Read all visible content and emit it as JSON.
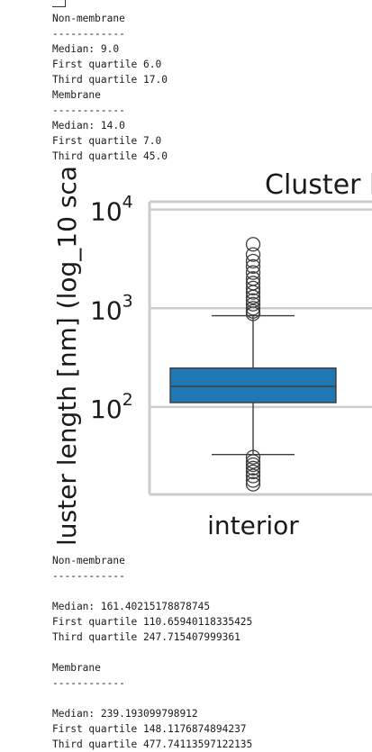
{
  "top_output": {
    "nonmembrane": {
      "title": "Non-membrane",
      "rule": "------------",
      "median": "Median: 9.0",
      "q1": "First quartile 6.0",
      "q3": "Third quartile 17.0"
    },
    "membrane": {
      "title": "Membrane",
      "rule": "------------",
      "median": "Median: 14.0",
      "q1": "First quartile 7.0",
      "q3": "Third quartile 45.0"
    }
  },
  "chart_data": {
    "type": "box",
    "title": "Cluster l",
    "ylabel": "luster length [nm] (log_10 sca",
    "yscale": "log",
    "ylim": [
      13,
      12000
    ],
    "yticks": [
      {
        "value": 100,
        "base": "10",
        "exp": "2"
      },
      {
        "value": 1000,
        "base": "10",
        "exp": "3"
      },
      {
        "value": 10000,
        "base": "10",
        "exp": "4"
      }
    ],
    "grid": true,
    "categories": [
      "interior"
    ],
    "color": "#1f77b4",
    "boxes": [
      {
        "category": "interior",
        "whisker_low": 33,
        "q1": 110.7,
        "median": 161.4,
        "q3": 247.7,
        "whisker_high": 840,
        "outliers": [
          4450,
          3500,
          3000,
          2650,
          2300,
          2000,
          1800,
          1600,
          1450,
          1300,
          1200,
          1100,
          1000,
          930,
          880,
          31,
          28,
          26,
          24,
          22,
          20,
          18,
          16.5
        ]
      }
    ]
  },
  "bottom_output": {
    "nonmembrane": {
      "title": "Non-membrane",
      "rule": "------------",
      "median": "Median: 161.40215178878745",
      "q1": "First quartile 110.65940118335425",
      "q3": "Third quartile 247.715407999361"
    },
    "membrane": {
      "title": "Membrane",
      "rule": "------------",
      "median": "Median: 239.193099798912",
      "q1": "First quartile 148.1176874894237",
      "q3": "Third quartile 477.74113597122135"
    }
  }
}
